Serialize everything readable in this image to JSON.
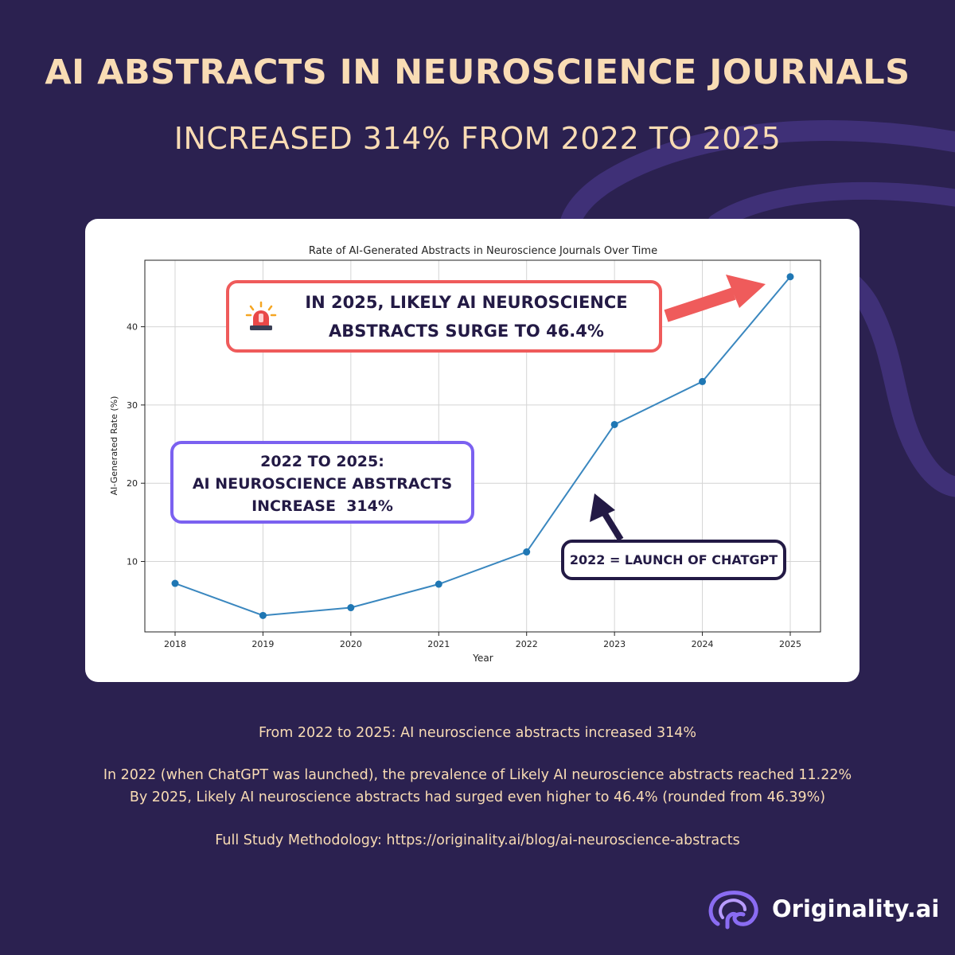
{
  "header": {
    "title": "AI ABSTRACTS IN NEUROSCIENCE JOURNALS",
    "subtitle": "INCREASED 314% FROM 2022 TO 2025"
  },
  "chart_data": {
    "type": "line",
    "title": "Rate of AI-Generated Abstracts in Neuroscience Journals Over Time",
    "xlabel": "Year",
    "ylabel": "AI-Generated Rate (%)",
    "x": [
      "2018",
      "2019",
      "2020",
      "2021",
      "2022",
      "2023",
      "2024",
      "2025"
    ],
    "values": [
      7.2,
      3.1,
      4.1,
      7.1,
      11.22,
      27.5,
      33.0,
      46.39
    ],
    "yticks": [
      10,
      20,
      30,
      40
    ],
    "ylim": [
      1.0,
      48.5
    ],
    "grid": true,
    "colors": {
      "line": "#3a87bf",
      "marker": "#1f77b4",
      "grid": "#d4d4d4"
    }
  },
  "callouts": {
    "surge": {
      "line1": "IN 2025, LIKELY AI NEUROSCIENCE",
      "line2": "ABSTRACTS SURGE TO 46.4%"
    },
    "increase": {
      "line1": "2022 TO 2025:",
      "line2": "AI NEUROSCIENCE ABSTRACTS",
      "line3": "INCREASE  314%"
    },
    "chatgpt": {
      "text": "2022 = LAUNCH OF CHATGPT"
    }
  },
  "footer": {
    "line1": "From 2022 to 2025: AI neuroscience abstracts increased 314%",
    "line2": "In 2022 (when ChatGPT was launched), the prevalence of Likely AI neuroscience abstracts reached 11.22%",
    "line3": "By 2025, Likely AI neuroscience abstracts had surged even higher to 46.4% (rounded from 46.39%)",
    "line4": "Full Study Methodology: https://originality.ai/blog/ai-neuroscience-abstracts"
  },
  "brand": {
    "name": "Originality.ai",
    "icon": "brain-icon"
  },
  "colors": {
    "background": "#2b2150",
    "headline": "#f9dcb4",
    "accent_red": "#ef5b5b",
    "accent_purple": "#7b61f0",
    "dark": "#231a45"
  }
}
